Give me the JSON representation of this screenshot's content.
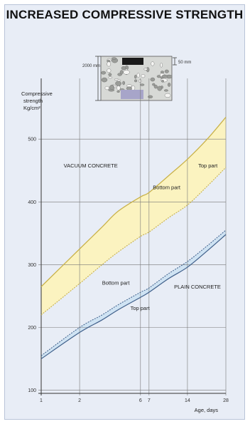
{
  "title": "INCREASED COMPRESSIVE STRENGTH",
  "inset": {
    "left_label": "2000 mm",
    "right_label": "50 mm"
  },
  "colors": {
    "vacuum_band": "#fbf3c0",
    "vacuum_line": "#c9b24a",
    "plain_band": "#cfe3f3",
    "plain_line": "#3f5f8a",
    "grid": "#777777"
  },
  "chart_data": {
    "type": "area",
    "ylabel": "Compressive strength Kg/cm²",
    "xlabel": "Age, days",
    "x_ticks": [
      1,
      2,
      6,
      7,
      14,
      28
    ],
    "y_ticks": [
      100,
      200,
      300,
      400,
      500
    ],
    "ylim": [
      95,
      540
    ],
    "log_x": true,
    "series": [
      {
        "name": "VACUUM CONCRETE Top part",
        "x": [
          1,
          2,
          3,
          4,
          6,
          7,
          10,
          14,
          20,
          28
        ],
        "values": [
          265,
          325,
          360,
          385,
          408,
          415,
          442,
          468,
          500,
          535
        ]
      },
      {
        "name": "VACUUM CONCRETE Bottom part",
        "x": [
          1,
          2,
          3,
          4,
          6,
          7,
          10,
          14,
          20,
          28
        ],
        "values": [
          220,
          270,
          300,
          320,
          345,
          352,
          375,
          395,
          425,
          455
        ]
      },
      {
        "name": "PLAIN CONCRETE Top part",
        "x": [
          1,
          2,
          3,
          4,
          6,
          7,
          10,
          14,
          20,
          28
        ],
        "values": [
          150,
          192,
          212,
          228,
          248,
          256,
          278,
          296,
          322,
          348
        ]
      },
      {
        "name": "PLAIN CONCRETE Bottom part",
        "x": [
          1,
          2,
          3,
          4,
          6,
          7,
          10,
          14,
          20,
          28
        ],
        "values": [
          155,
          200,
          220,
          236,
          256,
          263,
          286,
          305,
          330,
          355
        ]
      }
    ],
    "annotations": [
      {
        "text": "VACUUM CONCRETE",
        "x": 1.5,
        "y": 455
      },
      {
        "text": "Top part",
        "x": 17,
        "y": 455
      },
      {
        "text": "Bottom part",
        "x": 7.5,
        "y": 420
      },
      {
        "text": "Bottom part",
        "x": 3,
        "y": 268
      },
      {
        "text": "PLAIN CONCRETE",
        "x": 11,
        "y": 262
      },
      {
        "text": "Top part",
        "x": 5,
        "y": 228
      }
    ]
  }
}
